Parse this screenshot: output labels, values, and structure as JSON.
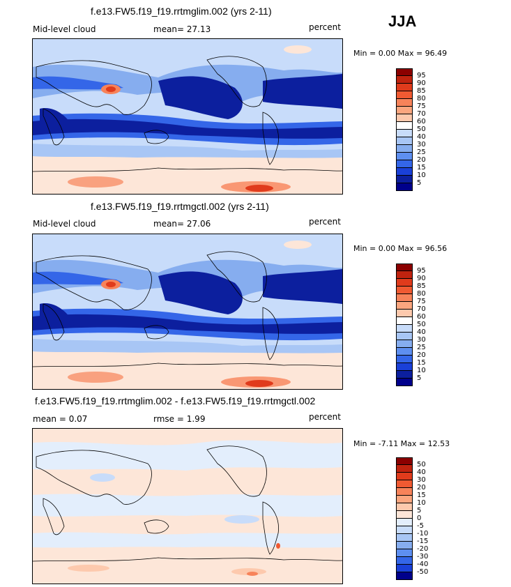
{
  "season": "JJA",
  "panels": [
    {
      "title": "f.e13.FW5.f19_f19.rrtmglim.002 (yrs 2-11)",
      "left": "Mid-level cloud",
      "mid": "mean=  27.13",
      "right": "percent",
      "minmax": "Min =    0.00 Max =   96.49"
    },
    {
      "title": "f.e13.FW5.f19_f19.rrtmgctl.002 (yrs 2-11)",
      "left": "Mid-level cloud",
      "mid": "mean=  27.06",
      "right": "percent",
      "minmax": "Min =    0.00 Max =   96.56"
    },
    {
      "title": "f.e13.FW5.f19_f19.rrtmglim.002 - f.e13.FW5.f19_f19.rrtmgctl.002",
      "left": "mean =   0.07",
      "mid": "rmse =   1.99",
      "right": "percent",
      "minmax": "Min =  -7.11 Max =   12.53"
    }
  ],
  "colorbar_abs": {
    "labels": [
      "95",
      "90",
      "85",
      "80",
      "75",
      "70",
      "60",
      "50",
      "40",
      "30",
      "25",
      "20",
      "15",
      "10",
      "5"
    ],
    "colors": [
      "#8b0000",
      "#c0230f",
      "#e03b1c",
      "#f05a32",
      "#f7835a",
      "#fba67f",
      "#fdc9ad",
      "#ffffff",
      "#c8dcfa",
      "#a8c6f5",
      "#86adef",
      "#5e8ff0",
      "#3466e8",
      "#1a40d8",
      "#0c1f9e",
      "#00008b"
    ]
  },
  "colorbar_diff": {
    "labels": [
      "50",
      "40",
      "30",
      "20",
      "15",
      "10",
      "5",
      "0",
      "-5",
      "-10",
      "-15",
      "-20",
      "-30",
      "-40",
      "-50"
    ],
    "colors": [
      "#8b0000",
      "#c0230f",
      "#e03b1c",
      "#f05a32",
      "#f7835a",
      "#fba67f",
      "#fdc9ad",
      "#fde6d8",
      "#e3eefc",
      "#c8dcfa",
      "#a8c6f5",
      "#86adef",
      "#5e8ff0",
      "#3466e8",
      "#1a40d8",
      "#00008b"
    ]
  },
  "map_palette": {
    "ocean_light": "#c8dcfa",
    "pink": "#fde6d8",
    "blue_mid": "#86adef",
    "blue_strong": "#3466e8",
    "navy": "#0c1f9e",
    "red": "#e03b1c",
    "orange": "#f7835a"
  }
}
